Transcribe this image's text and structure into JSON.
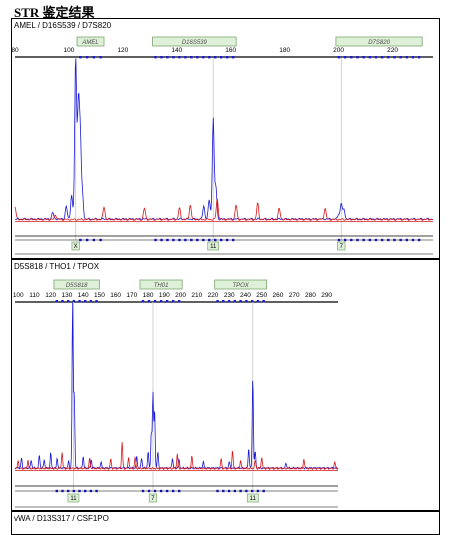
{
  "page": {
    "title": "STR 鉴定结果"
  },
  "panels": [
    {
      "label": "AMEL / D16S539 / D7S820"
    },
    {
      "label": "D5S818 / THO1 / TPOX"
    },
    {
      "label": "vWA / D13S317 / CSF1PO"
    }
  ],
  "chart_data": [
    {
      "type": "line",
      "title": "",
      "x_axis": {
        "min": 80,
        "max": 235,
        "ticks": [
          80,
          100,
          120,
          140,
          160,
          180,
          200,
          220
        ],
        "tick_labels": [
          "80",
          "100",
          "120",
          "140",
          "160",
          "180",
          "200",
          "220"
        ]
      },
      "markers": [
        {
          "name": "AMEL",
          "start": 103,
          "end": 113
        },
        {
          "name": "D16S539",
          "start": 131,
          "end": 162
        },
        {
          "name": "D7S820",
          "start": 199,
          "end": 231
        }
      ],
      "alleles": [
        {
          "label": "X",
          "x": 102.5
        },
        {
          "label": "11",
          "x": 153.5
        },
        {
          "label": "7",
          "x": 201
        }
      ],
      "series": [
        {
          "color": "#1a1ad8",
          "peaks": [
            [
              94,
              0.04
            ],
            [
              99,
              0.08
            ],
            [
              101,
              0.15
            ],
            [
              102.5,
              1.0
            ],
            [
              103.5,
              0.7
            ],
            [
              104.2,
              0.5
            ],
            [
              105,
              0.15
            ],
            [
              150,
              0.08
            ],
            [
              152,
              0.12
            ],
            [
              153.5,
              0.63
            ],
            [
              154.5,
              0.2
            ],
            [
              200,
              0.03
            ],
            [
              201,
              0.1
            ],
            [
              202,
              0.06
            ]
          ]
        },
        {
          "color": "#d81a1a",
          "peaks": [
            [
              80,
              0.08
            ],
            [
              95,
              0.03
            ],
            [
              113,
              0.08
            ],
            [
              128,
              0.07
            ],
            [
              141,
              0.07
            ],
            [
              145,
              0.09
            ],
            [
              155,
              0.13
            ],
            [
              162,
              0.09
            ],
            [
              170,
              0.1
            ],
            [
              178,
              0.07
            ],
            [
              195,
              0.07
            ]
          ]
        }
      ]
    },
    {
      "type": "line",
      "title": "",
      "x_axis": {
        "min": 98,
        "max": 297,
        "ticks": [
          100,
          110,
          120,
          130,
          140,
          150,
          160,
          170,
          180,
          190,
          200,
          210,
          220,
          230,
          240,
          250,
          260,
          270,
          280,
          290
        ],
        "tick_labels": [
          "100",
          "110",
          "120",
          "130",
          "140",
          "150",
          "160",
          "170",
          "180",
          "190",
          "200",
          "210",
          "220",
          "230",
          "240",
          "250",
          "260",
          "270",
          "280",
          "290"
        ]
      },
      "markers": [
        {
          "name": "D5S818",
          "start": 122,
          "end": 150
        },
        {
          "name": "TH01",
          "start": 175,
          "end": 201
        },
        {
          "name": "TPOX",
          "start": 221,
          "end": 253
        }
      ],
      "alleles": [
        {
          "label": "11",
          "x": 134
        },
        {
          "label": "7",
          "x": 183
        },
        {
          "label": "11",
          "x": 244.5
        }
      ],
      "series": [
        {
          "color": "#1a1ad8",
          "peaks": [
            [
              102,
              0.06
            ],
            [
              108,
              0.05
            ],
            [
              113,
              0.08
            ],
            [
              116,
              0.05
            ],
            [
              120,
              0.09
            ],
            [
              124,
              0.06
            ],
            [
              131,
              0.04
            ],
            [
              133.5,
              1.0
            ],
            [
              134.5,
              0.45
            ],
            [
              140,
              0.07
            ],
            [
              145,
              0.05
            ],
            [
              151,
              0.04
            ],
            [
              173,
              0.07
            ],
            [
              176,
              0.06
            ],
            [
              180,
              0.1
            ],
            [
              182,
              0.22
            ],
            [
              183,
              0.45
            ],
            [
              184,
              0.35
            ],
            [
              186,
              0.1
            ],
            [
              195,
              0.06
            ],
            [
              199,
              0.05
            ],
            [
              214,
              0.04
            ],
            [
              230,
              0.04
            ],
            [
              242,
              0.12
            ],
            [
              244.5,
              0.55
            ],
            [
              246,
              0.1
            ],
            [
              265,
              0.03
            ]
          ]
        },
        {
          "color": "#d81a1a",
          "peaks": [
            [
              100,
              0.05
            ],
            [
              106,
              0.05
            ],
            [
              127,
              0.1
            ],
            [
              144,
              0.06
            ],
            [
              157,
              0.06
            ],
            [
              164,
              0.16
            ],
            [
              168,
              0.07
            ],
            [
              172,
              0.07
            ],
            [
              198,
              0.09
            ],
            [
              207,
              0.08
            ],
            [
              225,
              0.06
            ],
            [
              232,
              0.11
            ],
            [
              237,
              0.05
            ],
            [
              246,
              0.05
            ],
            [
              250,
              0.07
            ],
            [
              276,
              0.06
            ],
            [
              295,
              0.04
            ]
          ]
        }
      ]
    }
  ]
}
